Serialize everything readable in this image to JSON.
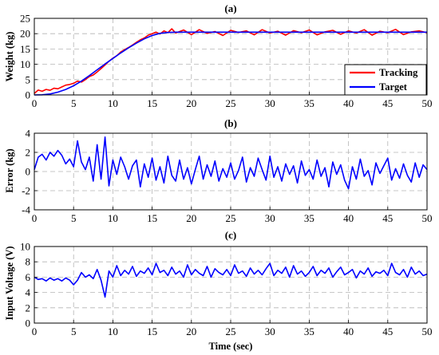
{
  "chart_data": [
    {
      "type": "line",
      "title": "(a)",
      "xlabel": "",
      "ylabel": "Weight (kg)",
      "xlim": [
        0,
        50
      ],
      "ylim": [
        0,
        25
      ],
      "xticks": [
        0,
        5,
        10,
        15,
        20,
        25,
        30,
        35,
        40,
        45,
        50
      ],
      "yticks": [
        0,
        5,
        10,
        15,
        20,
        25
      ],
      "grid": true,
      "legend": "bottom-right",
      "series": [
        {
          "name": "Tracking",
          "color": "#ff0000",
          "x": [
            0,
            0.5,
            1,
            1.5,
            2,
            2.5,
            3,
            3.5,
            4,
            4.5,
            5,
            5.5,
            6,
            6.5,
            7,
            7.5,
            8,
            8.5,
            9,
            9.5,
            10,
            10.5,
            11,
            11.5,
            12,
            12.5,
            13,
            13.5,
            14,
            14.5,
            15,
            15.5,
            16,
            16.5,
            17,
            17.5,
            18,
            19,
            20,
            21,
            22,
            23,
            24,
            25,
            26,
            27,
            28,
            29,
            30,
            31,
            32,
            33,
            34,
            35,
            36,
            37,
            38,
            39,
            40,
            41,
            42,
            43,
            44,
            45,
            46,
            47,
            48,
            49,
            50
          ],
          "y": [
            0.5,
            1.6,
            1.2,
            1.8,
            1.5,
            2.2,
            2.0,
            2.6,
            3.2,
            3.4,
            3.8,
            4.5,
            4.2,
            5.0,
            6.0,
            6.5,
            7.5,
            8.6,
            9.8,
            11.0,
            12.0,
            12.8,
            14.0,
            14.8,
            15.5,
            16.3,
            17.2,
            18.0,
            18.6,
            19.5,
            20.0,
            20.5,
            19.9,
            20.9,
            20.3,
            21.6,
            20.2,
            21.2,
            19.7,
            21.3,
            20.1,
            20.7,
            19.4,
            21.1,
            20.4,
            20.9,
            19.6,
            21.3,
            20.2,
            20.8,
            19.5,
            21.0,
            20.3,
            21.2,
            19.6,
            20.6,
            21.1,
            19.8,
            20.9,
            20.2,
            21.3,
            19.5,
            20.8,
            20.3,
            21.4,
            19.7,
            20.6,
            20.9,
            20.3
          ]
        },
        {
          "name": "Target",
          "color": "#0000ff",
          "x": [
            0,
            1,
            2,
            3,
            4,
            5,
            6,
            7,
            8,
            9,
            10,
            11,
            12,
            13,
            14,
            15,
            16,
            17,
            18,
            20,
            25,
            30,
            35,
            40,
            45,
            50
          ],
          "y": [
            0,
            0.05,
            0.3,
            0.9,
            1.8,
            3.0,
            4.5,
            6.3,
            8.2,
            10.1,
            11.9,
            13.7,
            15.4,
            16.9,
            18.3,
            19.4,
            20.1,
            20.4,
            20.5,
            20.5,
            20.5,
            20.5,
            20.5,
            20.5,
            20.5,
            20.5
          ]
        }
      ]
    },
    {
      "type": "line",
      "title": "(b)",
      "xlabel": "",
      "ylabel": "Error (kg)",
      "xlim": [
        0,
        50
      ],
      "ylim": [
        -4,
        4
      ],
      "xticks": [
        0,
        5,
        10,
        15,
        20,
        25,
        30,
        35,
        40,
        45,
        50
      ],
      "yticks": [
        -4,
        -2,
        0,
        2,
        4
      ],
      "grid": true,
      "series": [
        {
          "color": "#0000ff",
          "x": [
            0,
            0.5,
            1,
            1.5,
            2,
            2.5,
            3,
            3.5,
            4,
            4.5,
            5,
            5.5,
            6,
            6.5,
            7,
            7.5,
            8,
            8.5,
            9,
            9.5,
            10,
            10.5,
            11,
            11.5,
            12,
            12.5,
            13,
            13.5,
            14,
            14.5,
            15,
            15.5,
            16,
            16.5,
            17,
            17.5,
            18,
            18.5,
            19,
            19.5,
            20,
            20.5,
            21,
            21.5,
            22,
            22.5,
            23,
            23.5,
            24,
            24.5,
            25,
            25.5,
            26,
            26.5,
            27,
            27.5,
            28,
            28.5,
            29,
            29.5,
            30,
            30.5,
            31,
            31.5,
            32,
            32.5,
            33,
            33.5,
            34,
            34.5,
            35,
            35.5,
            36,
            36.5,
            37,
            37.5,
            38,
            38.5,
            39,
            39.5,
            40,
            40.5,
            41,
            41.5,
            42,
            42.5,
            43,
            43.5,
            44,
            44.5,
            45,
            45.5,
            46,
            46.5,
            47,
            47.5,
            48,
            48.5,
            49,
            49.5,
            50
          ],
          "y": [
            0.2,
            1.5,
            1.8,
            1.2,
            2.0,
            1.6,
            2.2,
            1.7,
            0.8,
            1.3,
            0.5,
            3.2,
            1.0,
            0.2,
            1.5,
            -1.0,
            2.8,
            -0.8,
            3.6,
            -1.5,
            1.2,
            -0.3,
            1.5,
            0.5,
            -0.8,
            0.6,
            1.2,
            -1.6,
            0.8,
            -0.6,
            1.4,
            -0.9,
            0.5,
            -1.2,
            1.6,
            -0.4,
            -1.0,
            1.2,
            -0.8,
            0.4,
            -1.3,
            0.2,
            1.6,
            -0.8,
            0.7,
            -0.5,
            1.1,
            -1.0,
            0.3,
            -0.6,
            0.9,
            -0.8,
            0.1,
            1.5,
            -1.1,
            0.4,
            -0.5,
            1.4,
            0.2,
            -0.9,
            1.6,
            -0.6,
            0.5,
            -1.0,
            0.8,
            -0.3,
            0.6,
            -1.2,
            1.1,
            -0.4,
            0.2,
            -0.8,
            1.2,
            -0.5,
            0.4,
            -1.6,
            1.0,
            -0.3,
            0.7,
            -0.9,
            -1.8,
            0.5,
            -0.8,
            1.3,
            -0.5,
            0.1,
            -1.4,
            0.9,
            -0.2,
            0.6,
            1.4,
            -0.9,
            0.3,
            -0.7,
            0.8,
            -0.4,
            -1.1,
            0.9,
            -0.6,
            0.7,
            0.2
          ]
        }
      ]
    },
    {
      "type": "line",
      "title": "(c)",
      "xlabel": "Time (sec)",
      "ylabel": "Input Voltage (V)",
      "xlim": [
        0,
        50
      ],
      "ylim": [
        0,
        10
      ],
      "xticks": [
        0,
        5,
        10,
        15,
        20,
        25,
        30,
        35,
        40,
        45,
        50
      ],
      "yticks": [
        0,
        2,
        4,
        6,
        8,
        10
      ],
      "grid": true,
      "series": [
        {
          "color": "#0000ff",
          "x": [
            0,
            0.5,
            1,
            1.5,
            2,
            2.5,
            3,
            3.5,
            4,
            4.5,
            5,
            5.5,
            6,
            6.5,
            7,
            7.5,
            8,
            8.5,
            9,
            9.5,
            10,
            10.5,
            11,
            11.5,
            12,
            12.5,
            13,
            13.5,
            14,
            14.5,
            15,
            15.5,
            16,
            16.5,
            17,
            17.5,
            18,
            18.5,
            19,
            19.5,
            20,
            20.5,
            21,
            21.5,
            22,
            22.5,
            23,
            23.5,
            24,
            24.5,
            25,
            25.5,
            26,
            26.5,
            27,
            27.5,
            28,
            28.5,
            29,
            29.5,
            30,
            30.5,
            31,
            31.5,
            32,
            32.5,
            33,
            33.5,
            34,
            34.5,
            35,
            35.5,
            36,
            36.5,
            37,
            37.5,
            38,
            38.5,
            39,
            39.5,
            40,
            40.5,
            41,
            41.5,
            42,
            42.5,
            43,
            43.5,
            44,
            44.5,
            45,
            45.5,
            46,
            46.5,
            47,
            47.5,
            48,
            48.5,
            49,
            49.5,
            50
          ],
          "y": [
            6.0,
            5.7,
            5.8,
            5.5,
            5.9,
            5.6,
            5.8,
            5.5,
            5.9,
            5.6,
            5.0,
            5.6,
            6.6,
            6.0,
            6.3,
            5.8,
            7.0,
            5.6,
            3.4,
            6.8,
            6.0,
            7.5,
            6.2,
            6.9,
            6.4,
            7.4,
            6.1,
            6.8,
            6.5,
            7.2,
            6.3,
            7.8,
            6.6,
            6.9,
            6.2,
            7.3,
            6.4,
            6.8,
            6.0,
            7.6,
            6.3,
            7.0,
            6.5,
            6.2,
            7.4,
            6.0,
            7.1,
            6.6,
            6.3,
            7.0,
            6.2,
            7.6,
            6.5,
            6.8,
            6.1,
            7.2,
            6.4,
            6.9,
            6.3,
            7.1,
            7.8,
            6.2,
            6.9,
            6.5,
            7.3,
            6.0,
            7.5,
            6.4,
            6.8,
            6.1,
            6.6,
            7.4,
            6.2,
            6.9,
            6.5,
            7.2,
            6.0,
            6.7,
            7.3,
            6.3,
            6.6,
            7.0,
            5.9,
            6.8,
            6.4,
            7.2,
            6.1,
            6.7,
            6.5,
            6.9,
            6.2,
            7.8,
            6.6,
            6.3,
            7.0,
            6.0,
            7.3,
            6.4,
            6.8,
            6.2,
            6.4
          ]
        }
      ]
    }
  ]
}
